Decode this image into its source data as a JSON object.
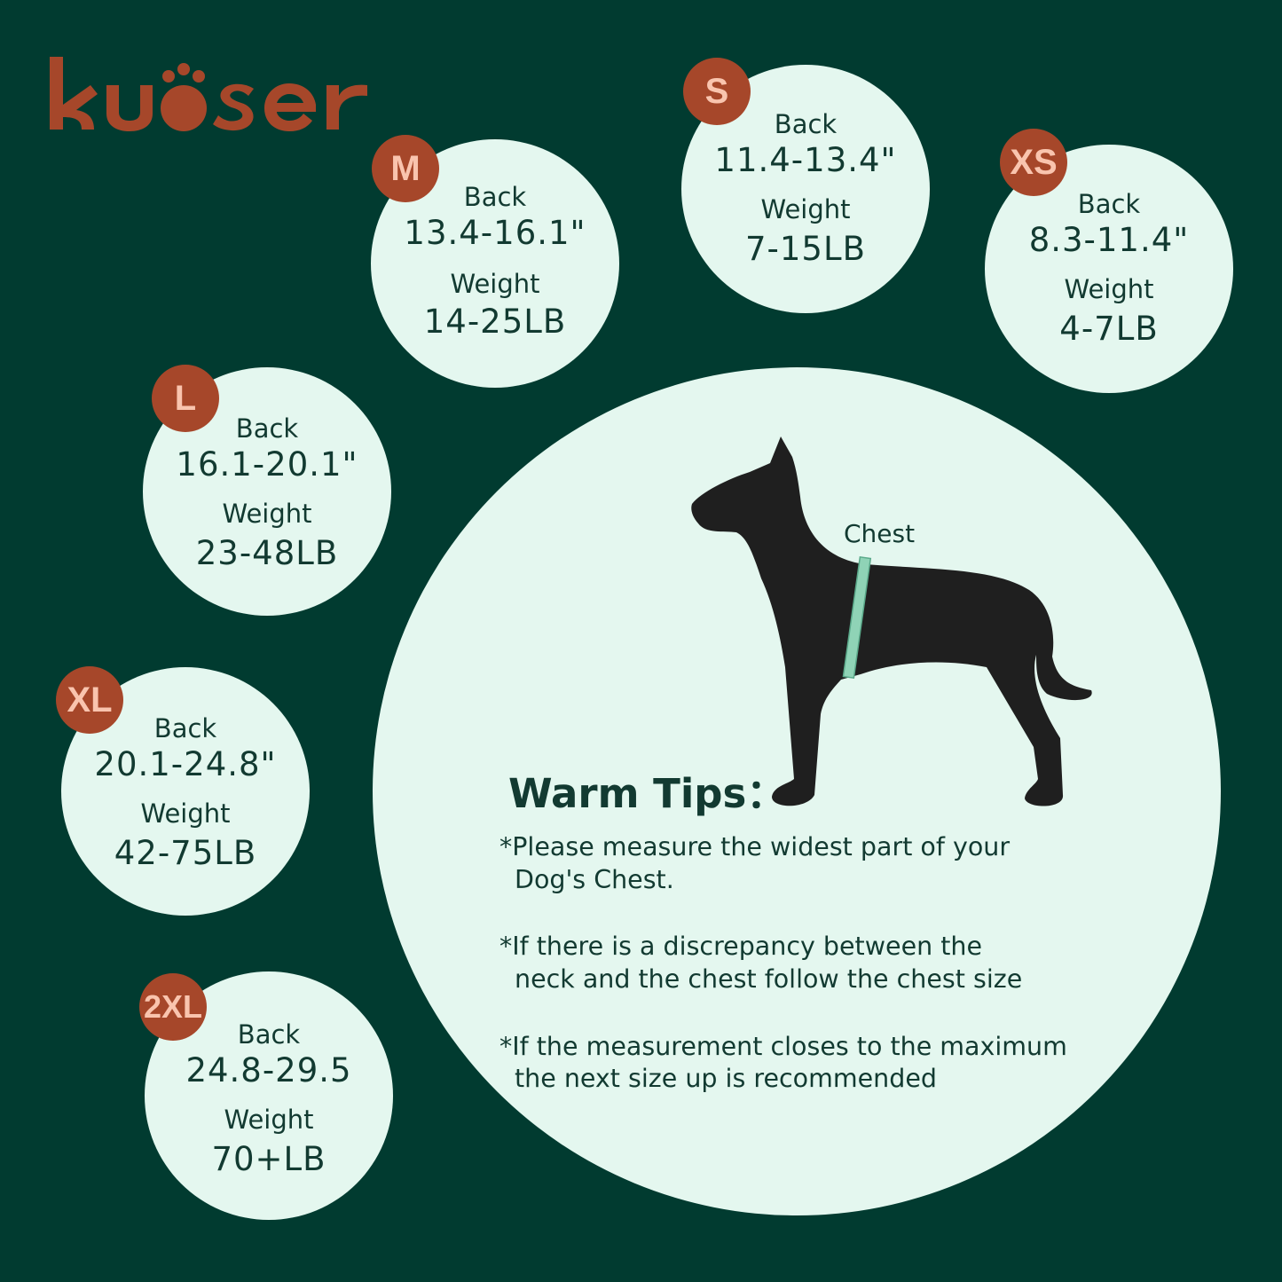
{
  "brand": {
    "logo_text": "kuoser",
    "color": "#a6472a"
  },
  "colors": {
    "background": "#013b30",
    "circle": "#e4f7ef",
    "badge": "#a6472a",
    "badge_text": "#f9c4ae",
    "text": "#123a31",
    "tape": "#8fd3b6",
    "dog": "#1f1f1f"
  },
  "sizes": [
    {
      "size": "M",
      "back_label": "Back",
      "back": "13.4-16.1\"",
      "weight_label": "Weight",
      "weight": "14-25LB"
    },
    {
      "size": "S",
      "back_label": "Back",
      "back": "11.4-13.4\"",
      "weight_label": "Weight",
      "weight": "7-15LB"
    },
    {
      "size": "XS",
      "back_label": "Back",
      "back": "8.3-11.4\"",
      "weight_label": "Weight",
      "weight": "4-7LB"
    },
    {
      "size": "L",
      "back_label": "Back",
      "back": "16.1-20.1\"",
      "weight_label": "Weight",
      "weight": "23-48LB"
    },
    {
      "size": "XL",
      "back_label": "Back",
      "back": "20.1-24.8\"",
      "weight_label": "Weight",
      "weight": "42-75LB"
    },
    {
      "size": "2XL",
      "back_label": "Back",
      "back": "24.8-29.5",
      "weight_label": "Weight",
      "weight": "70+LB"
    }
  ],
  "illustration": {
    "chest_label": "Chest",
    "icon": "dog-silhouette-icon"
  },
  "tips": {
    "title": "Warm Tips：",
    "lines": [
      "*Please measure the widest part of your",
      "  Dog's Chest.",
      "*If there is a discrepancy between the",
      "  neck and the chest follow the chest size",
      "*If the measurement closes to the maximum",
      "  the next size up is recommended"
    ]
  }
}
